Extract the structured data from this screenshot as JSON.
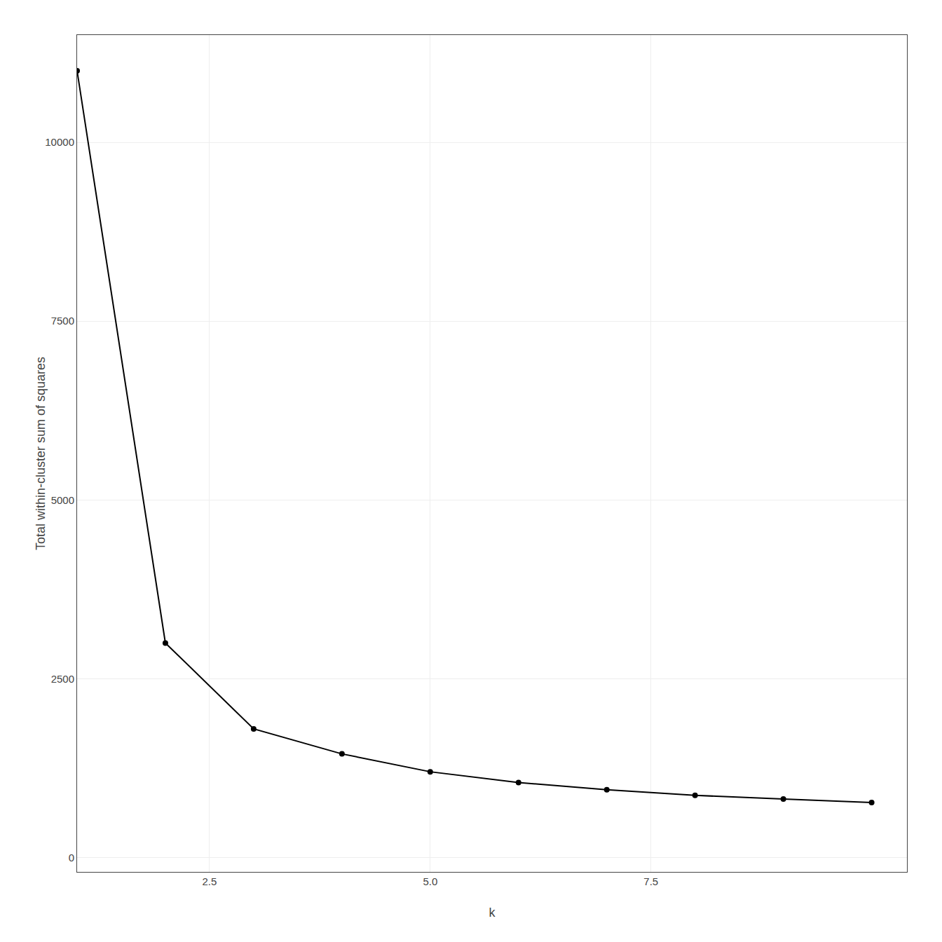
{
  "chart_data": {
    "type": "line",
    "x": [
      1,
      2,
      3,
      4,
      5,
      6,
      7,
      8,
      9,
      10
    ],
    "values": [
      11000,
      3000,
      1800,
      1450,
      1200,
      1050,
      950,
      870,
      820,
      770
    ],
    "x_label": "k",
    "y_label": "Total within-cluster sum of squares",
    "color": "#000000",
    "marker": "circle",
    "xlim": [
      1,
      10.4
    ],
    "ylim": [
      -200,
      11500
    ],
    "xticks": [
      2.5,
      {
        "value": 5,
        "label": "5.0"
      },
      7.5
    ],
    "yticks": [
      0,
      2500,
      5000,
      7500,
      10000
    ],
    "grid": true
  }
}
